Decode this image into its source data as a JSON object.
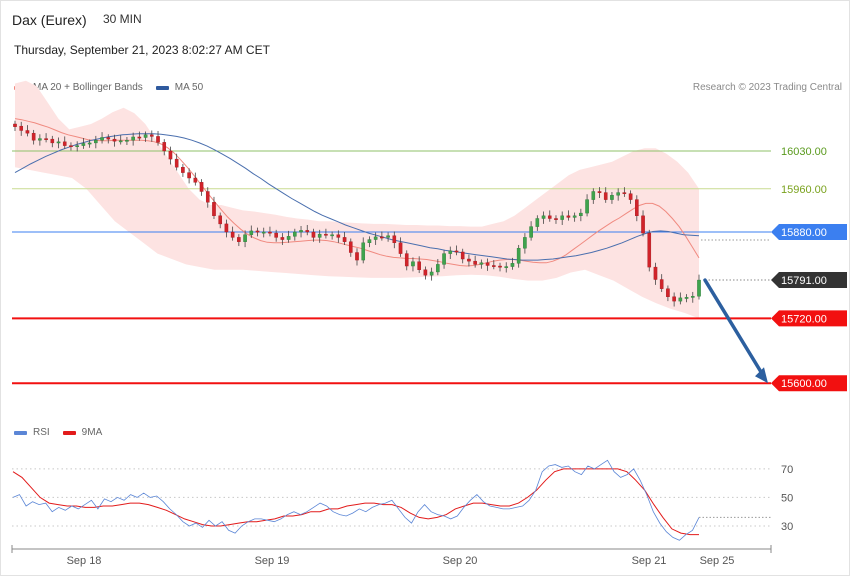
{
  "header": {
    "instrument": "Dax (Eurex)",
    "timeframe": "30 MIN",
    "datetime": "Thursday, September 21, 2023 8:02:27 AM CET"
  },
  "legend": {
    "items": [
      {
        "label": "MA 20 + Bollinger Bands",
        "color": "#f08a80"
      },
      {
        "label": "MA 50",
        "color": "#2f5a9e"
      }
    ],
    "credit": "Research © 2023 Trading Central"
  },
  "rsi_legend": {
    "items": [
      {
        "label": "RSI",
        "color": "#5b86d6"
      },
      {
        "label": "9MA",
        "color": "#e21b1b"
      }
    ]
  },
  "chart_data": [
    {
      "type": "candlestick",
      "panel": "price",
      "ylim": [
        15530,
        16130
      ],
      "levels": [
        {
          "value": 16030.0,
          "label": "16030.00",
          "kind": "resistance",
          "color": "#8fc26a",
          "text_color": "#5a9a1e"
        },
        {
          "value": 15960.0,
          "label": "15960.00",
          "kind": "resistance",
          "color": "#c9dc91",
          "text_color": "#7aa21e"
        },
        {
          "value": 15880.0,
          "label": "15880.00",
          "kind": "pivot",
          "color": "#3b7ff0",
          "text_color": "#ffffff"
        },
        {
          "value": 15791.0,
          "label": "15791.00",
          "kind": "last",
          "color": "#333333",
          "text_color": "#ffffff"
        },
        {
          "value": 15720.0,
          "label": "15720.00",
          "kind": "support",
          "color": "#f21010",
          "text_color": "#ffffff"
        },
        {
          "value": 15600.0,
          "label": "15600.00",
          "kind": "support",
          "color": "#f21010",
          "text_color": "#ffffff"
        }
      ],
      "last_price": 15791.0,
      "forecast_arrow": {
        "from": 15791.0,
        "to": 15600.0,
        "direction": "down",
        "color": "#2c5f9f"
      },
      "x_ticks": [
        "Sep 18",
        "Sep 19",
        "Sep 20",
        "Sep 21",
        "Sep 25"
      ],
      "close": [
        16075,
        16068,
        16063,
        16050,
        16053,
        16052,
        16045,
        16047,
        16040,
        16039,
        16040,
        16044,
        16045,
        16050,
        16055,
        16052,
        16048,
        16049,
        16050,
        16056,
        16055,
        16060,
        16057,
        16046,
        16030,
        16015,
        16000,
        15990,
        15980,
        15972,
        15955,
        15935,
        15910,
        15895,
        15880,
        15870,
        15862,
        15875,
        15882,
        15880,
        15880,
        15878,
        15870,
        15866,
        15872,
        15880,
        15883,
        15880,
        15870,
        15876,
        15874,
        15875,
        15870,
        15862,
        15842,
        15828,
        15860,
        15866,
        15871,
        15870,
        15873,
        15860,
        15840,
        15817,
        15825,
        15810,
        15800,
        15806,
        15820,
        15840,
        15845,
        15843,
        15830,
        15826,
        15820,
        15823,
        15818,
        15817,
        15815,
        15816,
        15822,
        15850,
        15870,
        15890,
        15905,
        15910,
        15905,
        15903,
        15910,
        15907,
        15910,
        15915,
        15940,
        15955,
        15953,
        15940,
        15948,
        15953,
        15951,
        15940,
        15910,
        15878,
        15815,
        15792,
        15775,
        15760,
        15752,
        15758,
        15759,
        15761,
        15791
      ],
      "open": [
        16080,
        16076,
        16068,
        16063,
        16050,
        16053,
        16052,
        16045,
        16047,
        16040,
        16039,
        16040,
        16044,
        16045,
        16050,
        16055,
        16052,
        16048,
        16049,
        16050,
        16056,
        16055,
        16060,
        16057,
        16046,
        16030,
        16015,
        16000,
        15990,
        15980,
        15972,
        15955,
        15935,
        15910,
        15895,
        15880,
        15870,
        15862,
        15875,
        15882,
        15880,
        15880,
        15878,
        15870,
        15866,
        15872,
        15880,
        15883,
        15880,
        15870,
        15876,
        15874,
        15875,
        15870,
        15862,
        15842,
        15828,
        15860,
        15866,
        15871,
        15870,
        15873,
        15860,
        15840,
        15817,
        15825,
        15810,
        15800,
        15806,
        15820,
        15840,
        15845,
        15843,
        15830,
        15826,
        15820,
        15823,
        15818,
        15817,
        15815,
        15816,
        15822,
        15850,
        15870,
        15890,
        15905,
        15910,
        15905,
        15903,
        15910,
        15907,
        15910,
        15915,
        15940,
        15955,
        15953,
        15940,
        15948,
        15953,
        15951,
        15940,
        15910,
        15878,
        15815,
        15792,
        15775,
        15760,
        15752,
        15758,
        15759,
        15761
      ],
      "ma20": [
        16090,
        16088,
        16085,
        16082,
        16078,
        16074,
        16069,
        16064,
        16060,
        16057,
        16054,
        16051,
        16050,
        16049,
        16049,
        16050,
        16050,
        16050,
        16050,
        16050,
        16049,
        16047,
        16043,
        16036,
        16026,
        16013,
        15999,
        15984,
        15968,
        15952,
        15937,
        15922,
        15908,
        15896,
        15885,
        15876,
        15869,
        15864,
        15861,
        15860,
        15860,
        15861,
        15862,
        15863,
        15864,
        15865,
        15865,
        15864,
        15862,
        15859,
        15856,
        15853,
        15850,
        15846,
        15842,
        15838,
        15835,
        15833,
        15832,
        15831,
        15831,
        15830,
        15829,
        15827,
        15825,
        15822,
        15820,
        15818,
        15817,
        15818,
        15820,
        15823,
        15826,
        15828,
        15829,
        15829,
        15828,
        15826,
        15824,
        15823,
        15823,
        15826,
        15831,
        15838,
        15847,
        15856,
        15865,
        15874,
        15883,
        15891,
        15899,
        15906,
        15914,
        15922,
        15929,
        15933,
        15933,
        15928,
        15918,
        15905,
        15890,
        15872,
        15852,
        15832
      ],
      "ma50": [
        15990,
        15998,
        16006,
        16013,
        16020,
        16026,
        16032,
        16037,
        16042,
        16046,
        16050,
        16053,
        16056,
        16058,
        16060,
        16061,
        16062,
        16062,
        16062,
        16061,
        16059,
        16057,
        16054,
        16050,
        16045,
        16039,
        16032,
        16024,
        16016,
        16007,
        15998,
        15988,
        15979,
        15969,
        15960,
        15951,
        15942,
        15934,
        15926,
        15918,
        15911,
        15905,
        15899,
        15893,
        15888,
        15883,
        15878,
        15874,
        15870,
        15866,
        15863,
        15860,
        15857,
        15854,
        15851,
        15849,
        15846,
        15844,
        15842,
        15840,
        15838,
        15836,
        15834,
        15832,
        15830,
        15829,
        15828,
        15828,
        15828,
        15829,
        15830,
        15832,
        15834,
        15836,
        15839,
        15842,
        15846,
        15850,
        15855,
        15860,
        15866,
        15872,
        15877,
        15881,
        15882,
        15881,
        15878,
        15875,
        15874,
        15873
      ],
      "bb_upper": [
        16155,
        16160,
        16150,
        16120,
        16090,
        16070,
        16075,
        16080,
        16090,
        16102,
        16110,
        16100,
        16080,
        16050,
        16020,
        15990,
        15960,
        15940,
        15930,
        15930,
        15925,
        15920,
        15918,
        15915,
        15912,
        15908,
        15905,
        15903,
        15900,
        15900,
        15898,
        15897,
        15896,
        15895,
        15895,
        15894,
        15893,
        15893,
        15892,
        15892,
        15891,
        15891,
        15890,
        15890,
        15895,
        15900,
        15910,
        15925,
        15940,
        15955,
        15970,
        15985,
        15995,
        16000,
        16005,
        16010,
        16020,
        16030,
        16035,
        16035,
        16025,
        16010,
        15990,
        15960
      ],
      "bb_lower": [
        16000,
        15995,
        15990,
        15985,
        15980,
        15960,
        15930,
        15900,
        15880,
        15860,
        15840,
        15830,
        15820,
        15815,
        15810,
        15810,
        15810,
        15808,
        15806,
        15804,
        15802,
        15800,
        15798,
        15797,
        15796,
        15795,
        15795,
        15795,
        15796,
        15797,
        15798,
        15800,
        15801,
        15800,
        15797,
        15793,
        15790,
        15790,
        15795,
        15805,
        15810,
        15800,
        15790,
        15775,
        15760,
        15748,
        15738,
        15730,
        15720
      ]
    },
    {
      "type": "line",
      "panel": "rsi",
      "ylim": [
        16,
        86
      ],
      "y_ticks": [
        70,
        50,
        30
      ],
      "x_ticks": [
        "Sep 18",
        "Sep 19",
        "Sep 20",
        "Sep 21",
        "Sep 25"
      ],
      "series": [
        {
          "name": "RSI",
          "values": [
            50,
            52,
            44,
            47,
            45,
            46,
            40,
            43,
            41,
            44,
            42,
            45,
            48,
            42,
            49,
            47,
            50,
            48,
            52,
            50,
            53,
            50,
            51,
            47,
            42,
            38,
            33,
            30,
            32,
            29,
            34,
            30,
            33,
            27,
            25,
            30,
            33,
            35,
            35,
            34,
            33,
            35,
            38,
            40,
            38,
            40,
            43,
            46,
            44,
            40,
            38,
            37,
            39,
            42,
            40,
            43,
            45,
            46,
            48,
            42,
            36,
            32,
            40,
            45,
            40,
            38,
            37,
            35,
            37,
            43,
            48,
            52,
            47,
            44,
            43,
            42,
            42,
            43,
            44,
            48,
            55,
            68,
            72,
            73,
            71,
            72,
            68,
            66,
            72,
            70,
            73,
            76,
            68,
            64,
            66,
            70,
            62,
            52,
            40,
            32,
            26,
            22,
            20,
            24,
            27,
            36
          ],
          "color": "#5b86d6"
        },
        {
          "name": "9MA",
          "values": [
            68,
            64,
            57,
            50,
            46,
            45,
            44,
            44,
            43,
            43,
            44,
            44,
            45,
            46,
            46,
            45,
            43,
            41,
            38,
            35,
            33,
            31,
            30,
            30,
            31,
            32,
            33,
            33,
            34,
            35,
            37,
            37,
            38,
            40,
            40,
            42,
            42,
            44,
            45,
            46,
            46,
            45,
            45,
            43,
            39,
            36,
            35,
            36,
            38,
            42,
            44,
            46,
            46,
            45,
            44,
            44,
            46,
            50,
            55,
            62,
            68,
            70,
            70,
            70,
            70,
            70,
            70,
            70,
            68,
            62,
            55,
            45,
            36,
            28,
            25,
            24,
            24
          ],
          "color": "#e21b1b"
        }
      ]
    }
  ]
}
